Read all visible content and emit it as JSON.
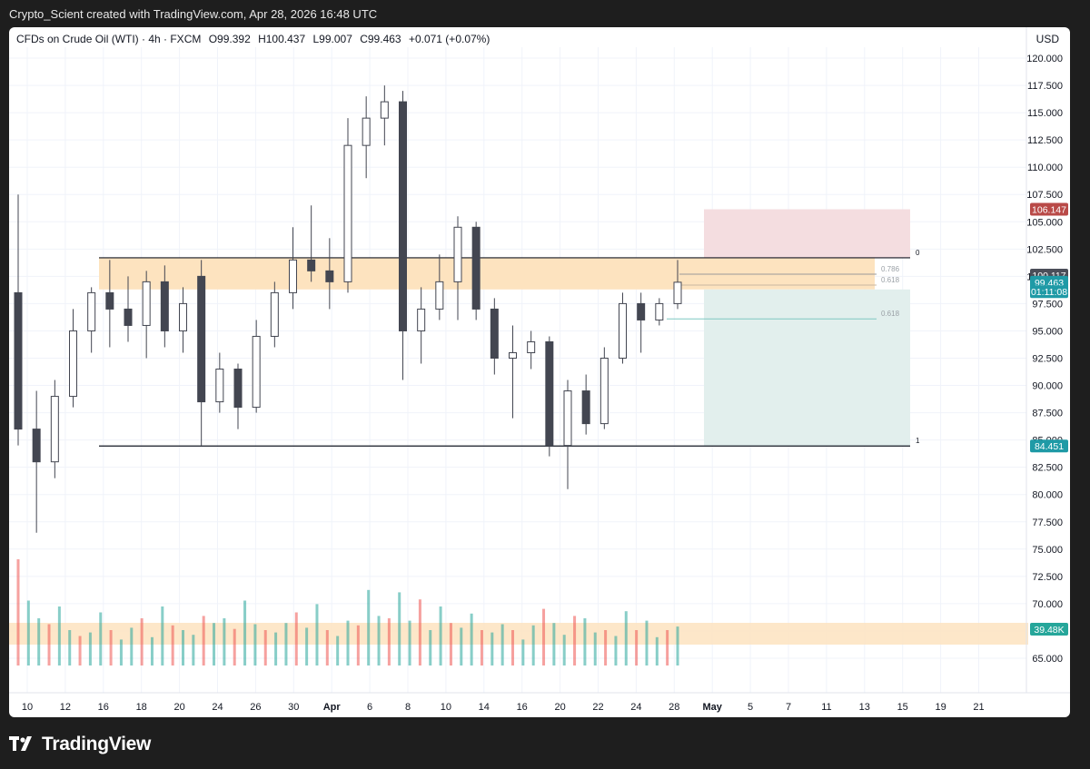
{
  "header": {
    "credit": "Crypto_Scient created with TradingView.com, Apr 28, 2026 16:48 UTC"
  },
  "legend": {
    "symbol": "CFDs on Crude Oil (WTI) · 4h · FXCM",
    "open": "O99.392",
    "high": "H100.437",
    "low": "L99.007",
    "close": "C99.463",
    "change": "+0.071 (+0.07%)"
  },
  "currency": "USD",
  "footer": {
    "brand": "TradingView"
  },
  "colors": {
    "up": "#26a69a",
    "down": "#ef5350",
    "candle": "#434651",
    "zone": "#fde3bf",
    "stop_zone": "#f4dde0",
    "target_zone": "#e2efed",
    "stop_label": "#b94a48",
    "target_label": "#1f9aa6",
    "price_label": "#4b4e59"
  },
  "chart_data": {
    "type": "candlestick",
    "symbol": "CFDs on Crude Oil (WTI)",
    "timeframe": "4h",
    "x_ticks": [
      "10",
      "12",
      "16",
      "18",
      "20",
      "24",
      "26",
      "30",
      "Apr",
      "6",
      "8",
      "10",
      "14",
      "16",
      "20",
      "22",
      "24",
      "28",
      "May",
      "5",
      "7",
      "11",
      "13",
      "15",
      "19",
      "21"
    ],
    "y_ticks": [
      "65.000",
      "67.500",
      "70.000",
      "72.500",
      "75.000",
      "77.500",
      "80.000",
      "82.500",
      "85.000",
      "87.500",
      "90.000",
      "92.500",
      "95.000",
      "97.500",
      "100.000",
      "102.500",
      "105.000",
      "107.500",
      "110.000",
      "112.500",
      "115.000",
      "117.500",
      "120.000"
    ],
    "ylim": [
      63.5,
      121.5
    ],
    "grid": true,
    "candles": [
      {
        "date": "Mar 9",
        "open": 98.5,
        "high": 107.5,
        "low": 84.5,
        "close": 86.0
      },
      {
        "date": "Mar 10",
        "open": 86.0,
        "high": 89.5,
        "low": 76.5,
        "close": 83.0
      },
      {
        "date": "Mar 11",
        "open": 83.0,
        "high": 90.5,
        "low": 81.5,
        "close": 89.0
      },
      {
        "date": "Mar 12",
        "open": 89.0,
        "high": 97.0,
        "low": 88.0,
        "close": 95.0
      },
      {
        "date": "Mar 13",
        "open": 95.0,
        "high": 99.0,
        "low": 93.0,
        "close": 98.5
      },
      {
        "date": "Mar 16",
        "open": 98.5,
        "high": 101.5,
        "low": 93.5,
        "close": 97.0
      },
      {
        "date": "Mar 17",
        "open": 97.0,
        "high": 100.0,
        "low": 94.0,
        "close": 95.5
      },
      {
        "date": "Mar 18",
        "open": 95.5,
        "high": 100.5,
        "low": 92.5,
        "close": 99.5
      },
      {
        "date": "Mar 19",
        "open": 99.5,
        "high": 101.0,
        "low": 93.5,
        "close": 95.0
      },
      {
        "date": "Mar 20",
        "open": 95.0,
        "high": 99.0,
        "low": 93.0,
        "close": 97.5
      },
      {
        "date": "Mar 23",
        "open": 100.0,
        "high": 101.5,
        "low": 84.5,
        "close": 88.5
      },
      {
        "date": "Mar 24",
        "open": 88.5,
        "high": 93.0,
        "low": 87.5,
        "close": 91.5
      },
      {
        "date": "Mar 25",
        "open": 91.5,
        "high": 92.0,
        "low": 86.0,
        "close": 88.0
      },
      {
        "date": "Mar 26",
        "open": 88.0,
        "high": 96.0,
        "low": 87.5,
        "close": 94.5
      },
      {
        "date": "Mar 27",
        "open": 94.5,
        "high": 99.5,
        "low": 93.5,
        "close": 98.5
      },
      {
        "date": "Mar 30",
        "open": 98.5,
        "high": 104.5,
        "low": 97.0,
        "close": 101.5
      },
      {
        "date": "Mar 31",
        "open": 101.5,
        "high": 106.5,
        "low": 99.5,
        "close": 100.5
      },
      {
        "date": "Apr 1",
        "open": 100.5,
        "high": 103.5,
        "low": 97.0,
        "close": 99.5
      },
      {
        "date": "Apr 2",
        "open": 99.5,
        "high": 114.5,
        "low": 98.5,
        "close": 112.0
      },
      {
        "date": "Apr 3",
        "open": 112.0,
        "high": 116.5,
        "low": 109.0,
        "close": 114.5
      },
      {
        "date": "Apr 6",
        "open": 114.5,
        "high": 117.5,
        "low": 112.0,
        "close": 116.0
      },
      {
        "date": "Apr 7",
        "open": 116.0,
        "high": 117.0,
        "low": 90.5,
        "close": 95.0
      },
      {
        "date": "Apr 8",
        "open": 95.0,
        "high": 99.0,
        "low": 92.0,
        "close": 97.0
      },
      {
        "date": "Apr 9",
        "open": 97.0,
        "high": 102.0,
        "low": 96.0,
        "close": 99.5
      },
      {
        "date": "Apr 10",
        "open": 99.5,
        "high": 105.5,
        "low": 96.0,
        "close": 104.5
      },
      {
        "date": "Apr 13",
        "open": 104.5,
        "high": 105.0,
        "low": 96.0,
        "close": 97.0
      },
      {
        "date": "Apr 14",
        "open": 97.0,
        "high": 98.0,
        "low": 91.0,
        "close": 92.5
      },
      {
        "date": "Apr 15",
        "open": 92.5,
        "high": 95.5,
        "low": 87.0,
        "close": 93.0
      },
      {
        "date": "Apr 16",
        "open": 93.0,
        "high": 95.0,
        "low": 91.5,
        "close": 94.0
      },
      {
        "date": "Apr 17",
        "open": 94.0,
        "high": 94.5,
        "low": 83.5,
        "close": 84.5
      },
      {
        "date": "Apr 20",
        "open": 84.5,
        "high": 90.5,
        "low": 80.5,
        "close": 89.5
      },
      {
        "date": "Apr 21",
        "open": 89.5,
        "high": 91.0,
        "low": 85.5,
        "close": 86.5
      },
      {
        "date": "Apr 22",
        "open": 86.5,
        "high": 93.5,
        "low": 86.0,
        "close": 92.5
      },
      {
        "date": "Apr 23",
        "open": 92.5,
        "high": 98.5,
        "low": 92.0,
        "close": 97.5
      },
      {
        "date": "Apr 24",
        "open": 97.5,
        "high": 98.5,
        "low": 93.0,
        "close": 96.0
      },
      {
        "date": "Apr 27",
        "open": 96.0,
        "high": 98.0,
        "low": 95.5,
        "close": 97.5
      },
      {
        "date": "Apr 28",
        "open": 97.5,
        "high": 101.5,
        "low": 97.0,
        "close": 99.46
      }
    ],
    "volume": {
      "label": "39.48K",
      "values": [
        0.9,
        0.55,
        0.4,
        0.35,
        0.5,
        0.3,
        0.25,
        0.28,
        0.45,
        0.3,
        0.22,
        0.32,
        0.4,
        0.24,
        0.5,
        0.34,
        0.3,
        0.26,
        0.42,
        0.36,
        0.4,
        0.31,
        0.55,
        0.35,
        0.3,
        0.28,
        0.36,
        0.45,
        0.32,
        0.52,
        0.3,
        0.25,
        0.38,
        0.34,
        0.64,
        0.42,
        0.4,
        0.62,
        0.38,
        0.56,
        0.3,
        0.5,
        0.36,
        0.32,
        0.44,
        0.3,
        0.28,
        0.35,
        0.3,
        0.22,
        0.34,
        0.48,
        0.36,
        0.26,
        0.42,
        0.4,
        0.28,
        0.3,
        0.25,
        0.46,
        0.3,
        0.38,
        0.24,
        0.3,
        0.33
      ],
      "ylim": [
        0,
        1.0
      ]
    },
    "annotations": [
      {
        "label": "0",
        "value": 101.7
      },
      {
        "label": "1",
        "value": 84.45
      },
      {
        "label": "0.786",
        "value": 100.2
      },
      {
        "label": "0.618",
        "value": 99.2
      },
      {
        "label": "0.618",
        "value": 96.1
      }
    ],
    "price_labels": [
      {
        "text": "106.147",
        "value": 106.147,
        "kind": "stop"
      },
      {
        "text": "100.117",
        "value": 100.117,
        "kind": "price"
      },
      {
        "text": "99.463",
        "value": 99.463,
        "kind": "last"
      },
      {
        "text": "01:11:08",
        "value": 98.6,
        "kind": "countdown"
      },
      {
        "text": "84.451",
        "value": 84.451,
        "kind": "target"
      }
    ]
  }
}
